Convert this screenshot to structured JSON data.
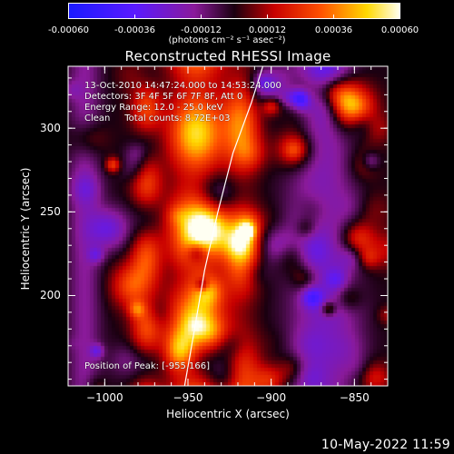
{
  "colorbar": {
    "tick_labels": [
      "-0.00060",
      "-0.00036",
      "-0.00012",
      "0.00012",
      "0.00036",
      "0.00060"
    ],
    "unit_label": "(photons cm⁻² s⁻¹ asec⁻²)",
    "range": [
      -0.0006,
      0.0006
    ]
  },
  "info": {
    "time_range": "13-Oct-2010 14:47:24.000 to 14:53:24.000",
    "detectors": "Detectors: 3F 4F 5F 6F 7F 8F, Att 0",
    "energy_range": "Energy Range: 12.0 - 25.0 keV",
    "clean_counts": "Clean     Total counts: 8.72E+03",
    "peak_position": "Position of Peak: [-955,166]"
  },
  "footer": {
    "date": "10-May-2022 11:59"
  },
  "chart_data": {
    "type": "heatmap",
    "title": "Reconstructed RHESSI Image",
    "xlabel": "Heliocentric X (arcsec)",
    "ylabel": "Heliocentric Y (arcsec)",
    "xlim": [
      -1022,
      -830
    ],
    "ylim": [
      146,
      337
    ],
    "xticks": [
      -1000,
      -950,
      -900,
      -850
    ],
    "yticks": [
      200,
      250,
      300
    ],
    "colormap_range": [
      -0.0006,
      0.0006
    ],
    "peak": [
      -955,
      166
    ],
    "limb": [
      [
        -952,
        146
      ],
      [
        -946,
        180
      ],
      [
        -940,
        215
      ],
      [
        -932,
        250
      ],
      [
        -923,
        285
      ],
      [
        -912,
        315
      ],
      [
        -905,
        337
      ]
    ]
  }
}
